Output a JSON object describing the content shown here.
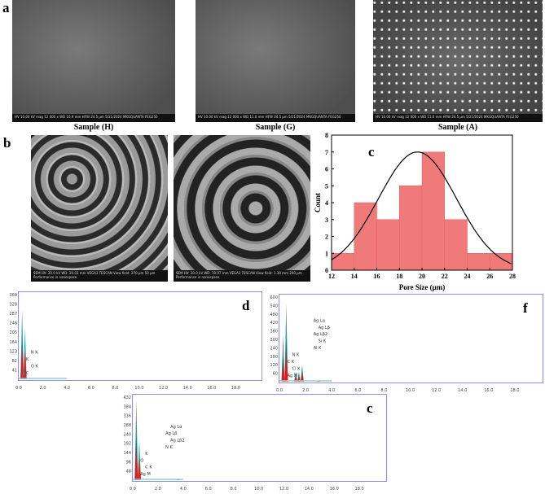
{
  "panels": {
    "a": {
      "label": "a",
      "samples": [
        {
          "caption": "Sample (H)",
          "info": "HV 10.00 kV  mag 12 000 x  WD 10.9 mm  HFW 24.5 μm  5/21/2024  MKGQUANTA FEG250"
        },
        {
          "caption": "Sample (G)",
          "info": "HV 10.00 kV  mag 12 000 x  WD 11.0 mm  HFW 24.5 μm  5/21/2024  MKGQUANTA FEG250"
        },
        {
          "caption": "Sample (A)",
          "info": "HV 10.00 kV  mag 12 000 x  WD 11.0 mm  HFW 24.5 μm  5/21/2024  MKGQUANTA FEG250"
        }
      ]
    },
    "b": {
      "label": "b",
      "images": [
        {
          "info": "SEM HV: 20.0 kV  WD: 20.03 mm  VEGA3 TESCAN  View field: 270 μm  50 μm  Performance in nanospace"
        },
        {
          "info": "SEM HV: 20.0 kV  WD: 19.97 mm  VEGA3 TESCAN  View field: 1.39 mm  200 μm  Performance in nanospace"
        }
      ]
    },
    "d": {
      "label": "d",
      "yticks": [
        "41",
        "82",
        "123",
        "164",
        "205",
        "246",
        "287",
        "328",
        "369"
      ],
      "xticks": [
        "0.0",
        "2.0",
        "4.0",
        "6.0",
        "8.0",
        "10.0",
        "12.0",
        "14.0",
        "16.0",
        "18.0"
      ],
      "peaks": [
        {
          "label": "C K",
          "x": 0.28,
          "h": 0.82
        },
        {
          "label": "O K",
          "x": 0.52,
          "h": 0.6
        },
        {
          "label": "N K",
          "x": 0.39,
          "h": 0.12
        }
      ],
      "peak_labels": [
        "C",
        "O K",
        "K",
        "N K"
      ]
    },
    "f": {
      "label": "f",
      "yticks": [
        "60",
        "120",
        "180",
        "240",
        "300",
        "360",
        "420",
        "480",
        "540",
        "600"
      ],
      "xticks": [
        "0.0",
        "2.0",
        "4.0",
        "6.0",
        "8.0",
        "10.0",
        "12.0",
        "14.0",
        "16.0",
        "18.0"
      ],
      "peaks": [
        {
          "x": 0.28,
          "h": 0.55
        },
        {
          "x": 0.52,
          "h": 0.93
        },
        {
          "x": 1.25,
          "h": 0.12
        },
        {
          "x": 1.49,
          "h": 0.12
        },
        {
          "x": 1.74,
          "h": 0.2
        },
        {
          "x": 3.0,
          "h": 0.02
        }
      ],
      "peak_labels": [
        "Ag M",
        "Cl K",
        "C K",
        "N K",
        "Al K",
        "Si K",
        "Ag Lβ2",
        "Ag Lβ",
        "Ag Lα"
      ]
    },
    "c2": {
      "label": "c",
      "yticks": [
        "48",
        "96",
        "144",
        "192",
        "240",
        "288",
        "336",
        "384",
        "432"
      ],
      "xticks": [
        "0.0",
        "2.0",
        "4.0",
        "6.0",
        "8.0",
        "10.0",
        "12.0",
        "14.0",
        "16.0",
        "18.0"
      ],
      "peaks": [
        {
          "x": 0.28,
          "h": 0.97
        },
        {
          "x": 0.52,
          "h": 0.48
        },
        {
          "x": 3.6,
          "h": 0.02
        }
      ],
      "peak_labels": [
        "Ag M",
        "C K",
        "O",
        "K",
        "N K",
        "Ag Lβ2",
        "Ag Lβ",
        "Ag Lα"
      ]
    }
  },
  "chart_data": {
    "type": "bar",
    "panel_label": "c",
    "xlabel": "Pore Size (μm)",
    "ylabel": "Count",
    "xlim": [
      12,
      28
    ],
    "ylim": [
      0,
      8
    ],
    "xticks": [
      12,
      14,
      16,
      18,
      20,
      22,
      24,
      26,
      28
    ],
    "yticks": [
      0,
      1,
      2,
      3,
      4,
      5,
      6,
      7,
      8
    ],
    "bins": [
      [
        12,
        14
      ],
      [
        14,
        16
      ],
      [
        16,
        18
      ],
      [
        18,
        20
      ],
      [
        20,
        22
      ],
      [
        22,
        24
      ],
      [
        24,
        26
      ],
      [
        26,
        28
      ]
    ],
    "values": [
      1,
      4,
      3,
      5,
      7,
      3,
      1,
      1
    ],
    "fit": {
      "type": "normal",
      "peak": 7,
      "mean": 19.6,
      "sd": 3.45
    },
    "bar_color": "#f07a7a",
    "fit_color": "#000000"
  }
}
